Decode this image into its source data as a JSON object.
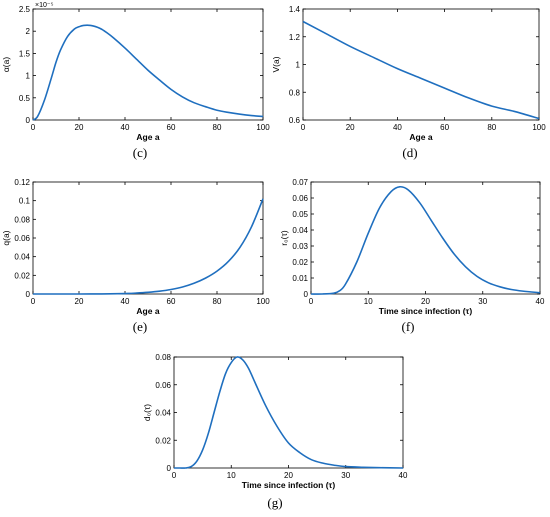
{
  "chart_data": [
    {
      "type": "line",
      "panel": "(c)",
      "xlabel": "Age a",
      "ylabel": "α(a)",
      "xlim": [
        0,
        100
      ],
      "ylim": [
        0,
        2.5
      ],
      "y_scale_note": "×10⁻⁵",
      "xticks": [
        "0",
        "20",
        "40",
        "60",
        "80",
        "100"
      ],
      "yticks": [
        "0",
        "0.5",
        "1",
        "1.5",
        "2",
        "2.5"
      ],
      "x": [
        0,
        2,
        5,
        8,
        10,
        12,
        15,
        18,
        20,
        22,
        25,
        28,
        30,
        32,
        35,
        40,
        45,
        50,
        55,
        60,
        65,
        70,
        75,
        80,
        85,
        90,
        95,
        100
      ],
      "y": [
        0,
        0.08,
        0.45,
        0.95,
        1.3,
        1.58,
        1.88,
        2.05,
        2.1,
        2.13,
        2.13,
        2.09,
        2.04,
        1.97,
        1.85,
        1.62,
        1.37,
        1.12,
        0.9,
        0.69,
        0.52,
        0.39,
        0.3,
        0.22,
        0.17,
        0.13,
        0.1,
        0.08
      ],
      "grid": false
    },
    {
      "type": "line",
      "panel": "(d)",
      "xlabel": "Age a",
      "ylabel": "V(a)",
      "xlim": [
        0,
        100
      ],
      "ylim": [
        0.6,
        1.4
      ],
      "xticks": [
        "0",
        "20",
        "40",
        "60",
        "80",
        "100"
      ],
      "yticks": [
        "0.6",
        "0.8",
        "1",
        "1.2",
        "1.4"
      ],
      "x": [
        0,
        10,
        20,
        30,
        40,
        50,
        60,
        70,
        80,
        90,
        100
      ],
      "y": [
        1.31,
        1.22,
        1.13,
        1.05,
        0.97,
        0.9,
        0.83,
        0.76,
        0.7,
        0.66,
        0.61
      ],
      "grid": false
    },
    {
      "type": "line",
      "panel": "(e)",
      "xlabel": "Age a",
      "ylabel": "q(a)",
      "xlim": [
        0,
        100
      ],
      "ylim": [
        0,
        0.12
      ],
      "xticks": [
        "0",
        "20",
        "40",
        "60",
        "80",
        "100"
      ],
      "yticks": [
        "0",
        "0.02",
        "0.04",
        "0.06",
        "0.08",
        "0.1",
        "0.12"
      ],
      "x": [
        0,
        10,
        20,
        30,
        40,
        45,
        50,
        55,
        60,
        65,
        70,
        75,
        80,
        85,
        90,
        95,
        100
      ],
      "y": [
        0,
        0,
        0,
        0.0001,
        0.0005,
        0.001,
        0.0018,
        0.003,
        0.0048,
        0.0075,
        0.0115,
        0.017,
        0.0245,
        0.035,
        0.05,
        0.072,
        0.102
      ],
      "grid": false
    },
    {
      "type": "line",
      "panel": "(f)",
      "xlabel": "Time  since  infection  (τ)",
      "ylabel": "r₀(τ)",
      "xlim": [
        0,
        40
      ],
      "ylim": [
        0,
        0.07
      ],
      "xticks": [
        "0",
        "10",
        "20",
        "30",
        "40"
      ],
      "yticks": [
        "0",
        "0.01",
        "0.02",
        "0.03",
        "0.04",
        "0.05",
        "0.06",
        "0.07"
      ],
      "x": [
        0,
        2,
        4,
        5,
        6,
        8,
        10,
        12,
        14,
        15.5,
        17,
        19,
        21,
        23,
        25,
        27,
        29,
        31,
        33,
        35,
        37,
        40
      ],
      "y": [
        0,
        0,
        0.0005,
        0.002,
        0.006,
        0.02,
        0.038,
        0.054,
        0.064,
        0.067,
        0.065,
        0.057,
        0.046,
        0.035,
        0.025,
        0.017,
        0.011,
        0.007,
        0.0045,
        0.0028,
        0.0018,
        0.0008
      ],
      "grid": false
    },
    {
      "type": "line",
      "panel": "(g)",
      "xlabel": "Time  since  infection  (τ)",
      "ylabel": "d₀(τ)",
      "xlim": [
        0,
        40
      ],
      "ylim": [
        0,
        0.08
      ],
      "xticks": [
        "0",
        "10",
        "20",
        "30",
        "40"
      ],
      "yticks": [
        "0",
        "0.02",
        "0.04",
        "0.06",
        "0.08"
      ],
      "x": [
        0,
        1,
        2,
        3,
        4,
        5,
        6,
        7,
        8,
        9,
        10,
        11,
        12,
        13,
        14,
        16,
        18,
        20,
        22,
        24,
        26,
        28,
        30,
        33,
        36,
        40
      ],
      "y": [
        0,
        0,
        0,
        0.001,
        0.005,
        0.013,
        0.025,
        0.04,
        0.055,
        0.068,
        0.076,
        0.08,
        0.078,
        0.072,
        0.063,
        0.045,
        0.03,
        0.018,
        0.011,
        0.006,
        0.0035,
        0.002,
        0.001,
        0.0005,
        0.0002,
        0
      ]
    }
  ],
  "colors": {
    "line": "#1f6fbf",
    "axis": "#000000"
  }
}
